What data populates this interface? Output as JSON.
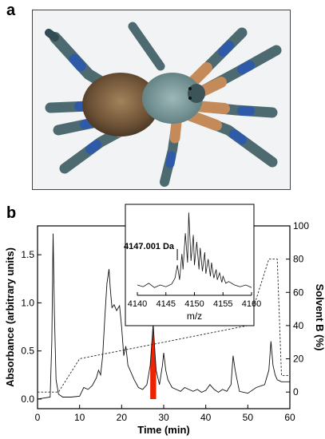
{
  "panels": {
    "a_label": "a",
    "b_label": "b"
  },
  "photo": {
    "subject": "tarantula",
    "background_color": "#f2f3f4"
  },
  "chart_data": [
    {
      "type": "line",
      "panel": "b-main",
      "xlabel": "Time (min)",
      "ylabel": "Absorbance (arbitrary units)",
      "y2label": "Solvent B (%)",
      "xlim": [
        0,
        60
      ],
      "ylim": [
        -0.1,
        1.8
      ],
      "y2lim": [
        -10,
        100
      ],
      "xticks": [
        0,
        10,
        20,
        30,
        40,
        50,
        60
      ],
      "yticks": [
        0.0,
        0.5,
        1.0,
        1.5
      ],
      "ytick_labels": [
        "0.0",
        "0.5",
        "1.0",
        "1.5"
      ],
      "y2ticks": [
        0,
        20,
        40,
        60,
        80,
        100
      ],
      "highlight_color": "#ee2200",
      "highlight_range": [
        26.8,
        28.2
      ],
      "series": [
        {
          "role": "absorbance",
          "style": "solid",
          "x": [
            0,
            3.0,
            3.4,
            3.7,
            4.0,
            4.4,
            5.0,
            6.0,
            8.0,
            10.0,
            11.0,
            12.0,
            13.0,
            14.0,
            14.5,
            15.0,
            15.5,
            16.0,
            16.5,
            17.0,
            17.3,
            17.7,
            18.2,
            18.8,
            19.5,
            20.0,
            20.5,
            21.0,
            21.5,
            22.0,
            23.0,
            24.0,
            25.0,
            26.0,
            26.8,
            27.5,
            28.2,
            29.0,
            29.7,
            30.0,
            30.5,
            31.0,
            32.0,
            33.0,
            34.0,
            35.0,
            36.0,
            37.0,
            38.0,
            39.0,
            40.0,
            41.0,
            42.0,
            43.0,
            44.0,
            45.0,
            46.0,
            46.5,
            47.0,
            48.0,
            50.0,
            52.0,
            54.0,
            55.0,
            55.5,
            56.0,
            56.5,
            57.0,
            58.0,
            60.0
          ],
          "y": [
            0.0,
            0.02,
            0.6,
            1.72,
            0.9,
            0.2,
            0.05,
            0.02,
            0.02,
            0.03,
            0.12,
            0.1,
            0.14,
            0.22,
            0.3,
            0.25,
            0.45,
            0.85,
            1.2,
            1.35,
            1.15,
            0.95,
            0.98,
            0.92,
            0.97,
            0.75,
            0.45,
            0.55,
            0.35,
            0.3,
            0.2,
            0.12,
            0.1,
            0.15,
            0.35,
            0.78,
            0.3,
            0.15,
            0.35,
            0.48,
            0.3,
            0.2,
            0.12,
            0.1,
            0.08,
            0.12,
            0.1,
            0.08,
            0.1,
            0.07,
            0.09,
            0.15,
            0.1,
            0.07,
            0.1,
            0.08,
            0.15,
            0.45,
            0.3,
            0.08,
            0.06,
            0.12,
            0.15,
            0.3,
            0.6,
            0.35,
            0.25,
            0.2,
            0.18,
            0.18
          ]
        },
        {
          "role": "solvent-b",
          "style": "dashed",
          "axis": "right",
          "x": [
            0,
            5,
            10,
            50,
            55,
            57,
            58,
            60
          ],
          "y": [
            0,
            0,
            20,
            40,
            80,
            80,
            10,
            10
          ]
        }
      ]
    },
    {
      "type": "line",
      "panel": "b-inset",
      "xlabel": "m/z",
      "xlim": [
        4140,
        4160
      ],
      "ylim": [
        0,
        100
      ],
      "xticks": [
        4140,
        4145,
        4150,
        4155,
        4160
      ],
      "annotation": "4147.001 Da",
      "annotation_x": 4147.0,
      "series": [
        {
          "role": "mass-spectrum",
          "x": [
            4140.0,
            4141.0,
            4142.0,
            4143.0,
            4144.0,
            4145.0,
            4146.0,
            4146.6,
            4147.0,
            4147.4,
            4147.8,
            4148.0,
            4148.4,
            4148.8,
            4149.0,
            4149.4,
            4149.8,
            4150.0,
            4150.4,
            4150.8,
            4151.0,
            4151.4,
            4151.8,
            4152.0,
            4152.4,
            4152.8,
            4153.0,
            4153.4,
            4153.8,
            4154.0,
            4154.4,
            4154.8,
            4155.0,
            4155.5,
            4156.0,
            4157.0,
            4158.0,
            4159.0,
            4160.0
          ],
          "y": [
            12,
            10,
            14,
            9,
            12,
            10,
            13,
            20,
            35,
            18,
            48,
            30,
            72,
            38,
            96,
            40,
            70,
            35,
            62,
            30,
            55,
            28,
            50,
            25,
            42,
            22,
            38,
            20,
            30,
            18,
            26,
            15,
            22,
            14,
            16,
            12,
            10,
            12,
            9
          ]
        }
      ]
    }
  ]
}
